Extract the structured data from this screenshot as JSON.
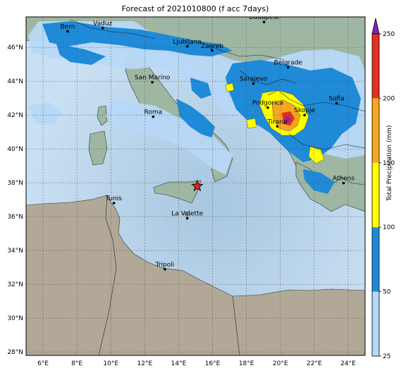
{
  "title": "Forecast of 2021010800 (f acc 7days)",
  "map": {
    "lon_range": [
      5,
      25
    ],
    "lat_range": [
      27.8,
      47.8
    ],
    "lon_ticks": [
      6,
      8,
      10,
      12,
      14,
      16,
      18,
      20,
      22,
      24
    ],
    "lon_tick_labels": [
      "6°E",
      "8°E",
      "10°E",
      "12°E",
      "14°E",
      "16°E",
      "18°E",
      "20°E",
      "22°E",
      "24°E"
    ],
    "lat_ticks": [
      28,
      30,
      32,
      34,
      36,
      38,
      40,
      42,
      44,
      46
    ],
    "lat_tick_labels": [
      "28°N",
      "30°N",
      "32°N",
      "34°N",
      "36°N",
      "38°N",
      "40°N",
      "42°N",
      "44°N",
      "46°N"
    ],
    "grid": "dotted",
    "marker": {
      "type": "red-star",
      "lon": 15.1,
      "lat": 37.8
    }
  },
  "cities": [
    {
      "name": "Bern",
      "lon": 7.45,
      "lat": 46.95
    },
    {
      "name": "Vaduz",
      "lon": 9.52,
      "lat": 47.14
    },
    {
      "name": "Budapest",
      "lon": 19.04,
      "lat": 47.5
    },
    {
      "name": "Ljubljana",
      "lon": 14.51,
      "lat": 46.06
    },
    {
      "name": "Zagreb",
      "lon": 15.98,
      "lat": 45.81
    },
    {
      "name": "Belgrade",
      "lon": 20.46,
      "lat": 44.82
    },
    {
      "name": "San Marino",
      "lon": 12.45,
      "lat": 43.94
    },
    {
      "name": "Sarajevo",
      "lon": 18.41,
      "lat": 43.86
    },
    {
      "name": "Podgorica",
      "lon": 19.26,
      "lat": 42.44
    },
    {
      "name": "Skopje",
      "lon": 21.43,
      "lat": 42.0
    },
    {
      "name": "Sofia",
      "lon": 23.32,
      "lat": 42.7
    },
    {
      "name": "Roma",
      "lon": 12.5,
      "lat": 41.9
    },
    {
      "name": "Tirana",
      "lon": 19.82,
      "lat": 41.33
    },
    {
      "name": "Athens",
      "lon": 23.73,
      "lat": 37.98
    },
    {
      "name": "Tunis",
      "lon": 10.18,
      "lat": 36.8
    },
    {
      "name": "La Valette",
      "lon": 14.51,
      "lat": 35.9
    },
    {
      "name": "Tripoli",
      "lon": 13.19,
      "lat": 32.89
    }
  ],
  "colorbar": {
    "label": "Total Precipitation (mm)",
    "levels": [
      25,
      50,
      100,
      150,
      200,
      250
    ],
    "level_labels": [
      "25",
      "50",
      "100",
      "150",
      "200",
      "250"
    ],
    "colors": [
      "#b8d8f8",
      "#1e8ad8",
      "#ffff00",
      "#f5a623",
      "#e03020"
    ],
    "extend_color": "#8020c0"
  },
  "colors": {
    "sea": "#c3dcf0",
    "land_europe": "#9fb7a2",
    "land_africa": "#b1a898",
    "precip_light": "#b8d8f8",
    "precip_moderate": "#1e8ad8",
    "precip_heavy": "#ffff00",
    "precip_very_heavy": "#f5a623",
    "precip_extreme": "#e03020"
  }
}
